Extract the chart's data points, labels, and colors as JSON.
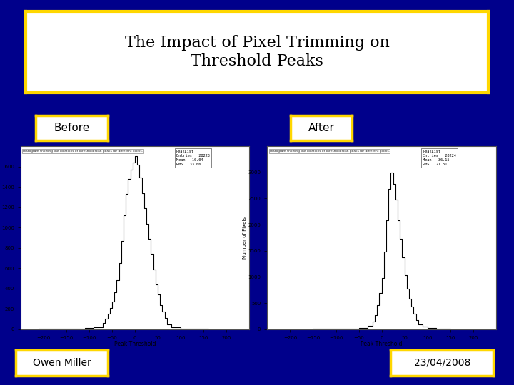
{
  "background_color": "#00008B",
  "title_text": "The Impact of Pixel Trimming on\nThreshold Peaks",
  "title_box_bg": "#FFFFFF",
  "title_box_border": "#FFD700",
  "before_label": "Before",
  "after_label": "After",
  "label_box_bg": "#FFFFFF",
  "label_box_border": "#FFD700",
  "owner_label": "Owen Miller",
  "date_label": "23/04/2008",
  "plot_bg": "#FFFFFF",
  "hist_color": "#000000",
  "xlabel": "Peak Threshold",
  "ylabel": "Number of Pixels",
  "subtitle": "Histogram showing the locations of threshold scan peaks for different pixels.",
  "before_stats_title": "PeakList",
  "before_stats_rows": [
    [
      "Entries",
      "28223"
    ],
    [
      "Mean",
      "10.04"
    ],
    [
      "RMS",
      "33.66"
    ]
  ],
  "after_stats_title": "PeakList",
  "after_stats_rows": [
    [
      "Entries",
      "28224"
    ],
    [
      "Mean",
      "36.15"
    ],
    [
      "RMS",
      "21.51"
    ]
  ],
  "before_xlim": [
    -250,
    250
  ],
  "before_ylim": [
    0,
    1800
  ],
  "after_xlim": [
    -250,
    250
  ],
  "after_ylim": [
    0,
    3500
  ],
  "before_xticks": [
    -200,
    -150,
    -100,
    -50,
    0,
    50,
    100,
    150,
    200
  ],
  "after_xticks": [
    -200,
    -150,
    -100,
    -50,
    0,
    50,
    100,
    150,
    200
  ],
  "before_yticks": [
    0,
    200,
    400,
    600,
    800,
    1000,
    1200,
    1400,
    1600
  ],
  "after_yticks": [
    0,
    500,
    1000,
    1500,
    2000,
    2500,
    3000
  ],
  "before_hist_edges": [
    -250,
    -230,
    -210,
    -190,
    -170,
    -150,
    -130,
    -110,
    -90,
    -70,
    -65,
    -60,
    -55,
    -50,
    -45,
    -40,
    -35,
    -30,
    -25,
    -20,
    -15,
    -10,
    -5,
    0,
    5,
    10,
    15,
    20,
    25,
    30,
    35,
    40,
    45,
    50,
    55,
    60,
    65,
    70,
    80,
    100,
    130,
    160,
    200,
    250
  ],
  "before_hist_values": [
    1,
    1,
    2,
    2,
    3,
    4,
    6,
    10,
    20,
    60,
    100,
    150,
    210,
    270,
    360,
    480,
    650,
    870,
    1120,
    1330,
    1480,
    1570,
    1640,
    1700,
    1620,
    1490,
    1340,
    1190,
    1040,
    890,
    740,
    590,
    440,
    340,
    240,
    170,
    110,
    45,
    18,
    7,
    3,
    1,
    0
  ],
  "after_hist_edges": [
    -250,
    -230,
    -210,
    -190,
    -170,
    -150,
    -130,
    -110,
    -90,
    -70,
    -50,
    -40,
    -30,
    -20,
    -15,
    -10,
    -5,
    0,
    5,
    10,
    15,
    20,
    25,
    30,
    35,
    40,
    45,
    50,
    55,
    60,
    65,
    70,
    75,
    80,
    90,
    100,
    120,
    150,
    200,
    250
  ],
  "after_hist_values": [
    1,
    1,
    1,
    2,
    2,
    3,
    4,
    5,
    7,
    9,
    18,
    28,
    65,
    140,
    270,
    460,
    690,
    980,
    1480,
    2080,
    2680,
    3000,
    2780,
    2480,
    2080,
    1730,
    1380,
    1030,
    780,
    580,
    430,
    300,
    180,
    90,
    45,
    18,
    7,
    2,
    0
  ]
}
